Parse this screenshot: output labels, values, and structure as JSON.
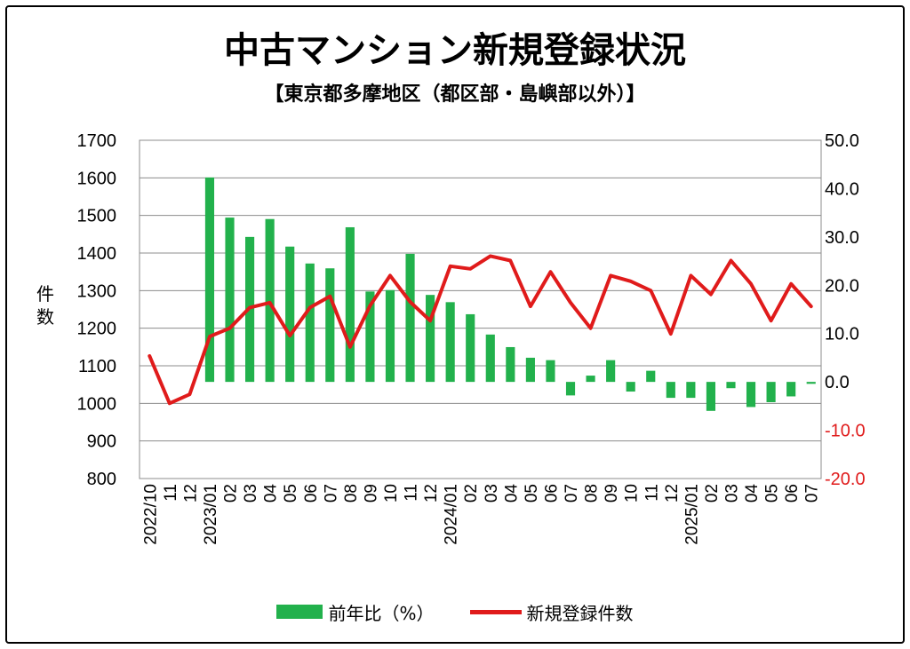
{
  "chart_data": {
    "type": "bar+line",
    "title": "中古マンション新規登録状況",
    "subtitle": "【東京都多摩地区（都区部・島嶼部以外）】",
    "ylabel": "件数",
    "left_axis": {
      "min": 800,
      "max": 1700,
      "step": 100,
      "ticks": [
        "1700",
        "1600",
        "1500",
        "1400",
        "1300",
        "1200",
        "1100",
        "1000",
        "900",
        "800"
      ]
    },
    "right_axis": {
      "min": -20,
      "max": 50,
      "step": 10,
      "ticks": [
        "50.0",
        "40.0",
        "30.0",
        "20.0",
        "10.0",
        "0.0",
        "-10.0",
        "-20.0"
      ]
    },
    "categories": [
      "2022/10",
      "11",
      "12",
      "2023/01",
      "02",
      "03",
      "04",
      "05",
      "06",
      "07",
      "08",
      "09",
      "10",
      "11",
      "12",
      "2024/01",
      "02",
      "03",
      "04",
      "05",
      "06",
      "07",
      "08",
      "09",
      "10",
      "11",
      "12",
      "2025/01",
      "02",
      "03",
      "04",
      "05",
      "06",
      "07"
    ],
    "series": [
      {
        "name": "前年比（%）",
        "type": "bar",
        "axis": "right",
        "color": "#22b14c",
        "values": [
          null,
          null,
          null,
          42.3,
          34.0,
          30.0,
          33.7,
          28.0,
          24.5,
          23.5,
          32.0,
          18.7,
          19.0,
          26.5,
          18.0,
          16.5,
          14.0,
          9.8,
          7.2,
          5.0,
          4.5,
          -2.8,
          1.3,
          4.5,
          -2.0,
          2.3,
          -3.3,
          -3.3,
          -6.0,
          -1.3,
          -5.2,
          -4.2,
          -3.0,
          -0.4
        ]
      },
      {
        "name": "新規登録件数",
        "type": "line",
        "axis": "left",
        "color": "#e01b1b",
        "values": [
          1126,
          1000,
          1024,
          1178,
          1200,
          1255,
          1268,
          1180,
          1255,
          1285,
          1150,
          1260,
          1340,
          1270,
          1220,
          1365,
          1358,
          1392,
          1380,
          1258,
          1350,
          1268,
          1200,
          1340,
          1325,
          1300,
          1185,
          1340,
          1290,
          1380,
          1318,
          1220,
          1318,
          1258
        ]
      }
    ],
    "right_axis_negative_color": "#e01b1b",
    "grid": true,
    "legend_position": "bottom"
  }
}
